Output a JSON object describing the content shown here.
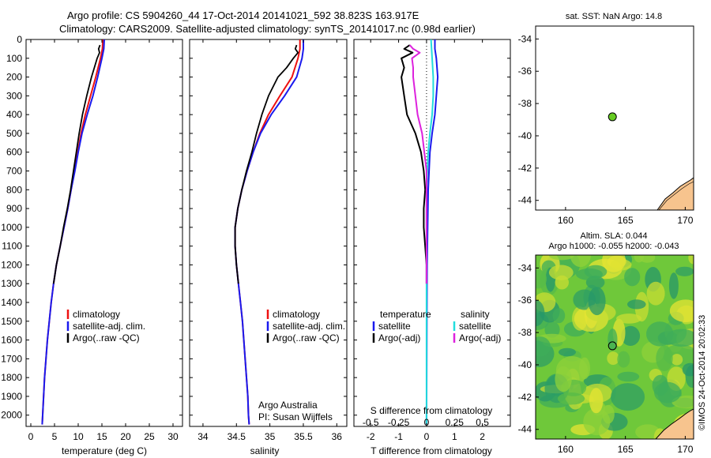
{
  "header": {
    "line1": "Argo profile: CS 5904260_44 17-Oct-2014 20141021_592 38.823S 163.917E",
    "line2": "Climatology: CARS2009. Satellite-adjusted climatology: synTS_20141017.nc (0.98d earlier)"
  },
  "colors": {
    "climatology": "#ee1111",
    "satellite": "#1a1aee",
    "argo": "#000000",
    "s_satellite": "#22dddd",
    "s_argo": "#dd22dd",
    "float_marker": "#66cc22",
    "land": "#f7c48e"
  },
  "depth_ticks": [
    "0",
    "100",
    "200",
    "300",
    "400",
    "500",
    "600",
    "700",
    "800",
    "900",
    "1000",
    "1100",
    "1200",
    "1300",
    "1400",
    "1500",
    "1600",
    "1700",
    "1800",
    "1900",
    "2000"
  ],
  "chart_data": [
    {
      "type": "line",
      "xlabel": "temperature (deg C)",
      "xlim": [
        -1,
        32
      ],
      "ylim": [
        2060,
        0
      ],
      "xticks": [
        "0",
        "5",
        "10",
        "15",
        "20",
        "25",
        "30"
      ],
      "legend": [
        "climatology",
        "satellite-adj. clim.",
        "Argo(..raw -QC)"
      ],
      "series": [
        {
          "name": "climatology",
          "depth": [
            0,
            50,
            100,
            200,
            300,
            400,
            500,
            600,
            700,
            800,
            900,
            1000,
            1100,
            1200,
            1300,
            1400,
            1500,
            1600,
            1700,
            1800,
            1900,
            2000,
            2050
          ],
          "values": [
            15.2,
            15.1,
            14.7,
            13.7,
            12.6,
            11.5,
            10.6,
            9.9,
            9.2,
            8.5,
            7.8,
            7.0,
            6.2,
            5.4,
            4.8,
            4.3,
            3.9,
            3.5,
            3.2,
            2.9,
            2.7,
            2.5,
            2.4
          ]
        },
        {
          "name": "satellite-adj. clim.",
          "depth": [
            0,
            50,
            100,
            200,
            300,
            400,
            500,
            600,
            700,
            800,
            900,
            1000,
            1100,
            1200,
            1300,
            1400,
            1500,
            1600,
            1700,
            1800,
            1900,
            2000,
            2050
          ],
          "values": [
            15.5,
            15.4,
            15.0,
            14.1,
            13.1,
            11.9,
            10.8,
            10.0,
            9.3,
            8.5,
            7.8,
            7.0,
            6.2,
            5.4,
            4.8,
            4.3,
            3.9,
            3.5,
            3.2,
            2.9,
            2.7,
            2.5,
            2.4
          ]
        },
        {
          "name": "Argo(..raw -QC)",
          "depth": [
            30,
            50,
            70,
            100,
            150,
            200,
            300,
            400,
            500,
            600,
            700,
            800,
            900,
            1000,
            1100,
            1200,
            1300
          ],
          "values": [
            14.6,
            14.3,
            14.5,
            14.0,
            13.4,
            12.8,
            11.8,
            10.9,
            10.2,
            9.6,
            9.0,
            8.4,
            7.7,
            6.9,
            6.2,
            5.4,
            4.8
          ]
        }
      ]
    },
    {
      "type": "line",
      "xlabel": "salinity",
      "xlim": [
        33.8,
        36.15
      ],
      "ylim": [
        2060,
        0
      ],
      "xticks": [
        "34",
        "34.5",
        "35",
        "35.5",
        "36"
      ],
      "legend": [
        "climatology",
        "satellite-adj. clim.",
        "Argo(..raw -QC)"
      ],
      "annotations": [
        "Argo Australia",
        "PI: Susan Wijffels"
      ],
      "series": [
        {
          "name": "climatology",
          "depth": [
            0,
            50,
            100,
            200,
            300,
            400,
            500,
            600,
            700,
            800,
            900,
            1000,
            1100,
            1200,
            1300,
            1400,
            1500,
            1600,
            1700,
            1800,
            1900,
            2000,
            2050
          ],
          "values": [
            35.45,
            35.45,
            35.42,
            35.33,
            35.15,
            34.98,
            34.85,
            34.75,
            34.66,
            34.58,
            34.52,
            34.48,
            34.48,
            34.5,
            34.53,
            34.56,
            34.59,
            34.61,
            34.63,
            34.65,
            34.67,
            34.68,
            34.69
          ]
        },
        {
          "name": "satellite-adj. clim.",
          "depth": [
            0,
            50,
            100,
            200,
            300,
            400,
            500,
            600,
            700,
            800,
            900,
            1000,
            1100,
            1200,
            1300,
            1400,
            1500,
            1600,
            1700,
            1800,
            1900,
            2000,
            2050
          ],
          "values": [
            35.5,
            35.5,
            35.48,
            35.4,
            35.22,
            35.02,
            34.86,
            34.75,
            34.66,
            34.58,
            34.52,
            34.48,
            34.48,
            34.5,
            34.53,
            34.56,
            34.59,
            34.61,
            34.63,
            34.65,
            34.67,
            34.68,
            34.69
          ]
        },
        {
          "name": "Argo(..raw -QC)",
          "depth": [
            30,
            50,
            70,
            100,
            150,
            200,
            300,
            400,
            500,
            600,
            700,
            800,
            900,
            1000,
            1100,
            1200,
            1300
          ],
          "values": [
            35.4,
            35.38,
            35.42,
            35.35,
            35.25,
            35.12,
            34.98,
            34.88,
            34.8,
            34.73,
            34.65,
            34.58,
            34.52,
            34.48,
            34.48,
            34.5,
            34.53
          ]
        }
      ]
    },
    {
      "type": "line",
      "xlabel": "T difference from climatology",
      "xlabel2": "S difference from climatology",
      "xlim": [
        -2.6,
        3.0
      ],
      "ylim": [
        2060,
        0
      ],
      "xticks": [
        "-2",
        "-1",
        "0",
        "1",
        "2"
      ],
      "xticks_s": [
        "-0.5",
        "-0.25",
        "0",
        "0.25",
        "0.5"
      ],
      "legend_titles": [
        "temperature",
        "salinity"
      ],
      "legend": [
        "satellite",
        "Argo(-adj)",
        "satellite",
        "Argo(-adj)"
      ],
      "series": [
        {
          "name": "temperature satellite",
          "depth": [
            0,
            50,
            100,
            200,
            300,
            400,
            500,
            600,
            800,
            1000,
            1200,
            1500,
            2050
          ],
          "values": [
            0.3,
            0.3,
            0.35,
            0.4,
            0.35,
            0.3,
            0.2,
            0.12,
            0.06,
            0.04,
            0.02,
            0.01,
            0.0
          ]
        },
        {
          "name": "temperature Argo(-adj)",
          "depth": [
            30,
            50,
            70,
            100,
            150,
            200,
            300,
            400,
            500,
            600,
            700,
            800,
            900,
            1000,
            1100,
            1200,
            1300
          ],
          "values": [
            -0.6,
            -0.8,
            -0.5,
            -0.9,
            -0.8,
            -0.9,
            -0.8,
            -0.7,
            -0.4,
            -0.2,
            -0.1,
            -0.05,
            -0.1,
            -0.1,
            -0.05,
            0.0,
            0.0
          ]
        },
        {
          "name": "salinity satellite",
          "depth": [
            0,
            100,
            200,
            300,
            400,
            500,
            600,
            800,
            1000,
            1200,
            1500,
            2050
          ],
          "values": [
            0.04,
            0.05,
            0.06,
            0.06,
            0.05,
            0.03,
            0.015,
            0.0,
            0.0,
            0.0,
            0.0,
            0.0
          ]
        },
        {
          "name": "salinity Argo(-adj)",
          "depth": [
            30,
            50,
            70,
            100,
            150,
            200,
            300,
            400,
            500,
            600,
            700,
            800,
            900,
            1000,
            1100,
            1200,
            1300
          ],
          "values": [
            -0.15,
            -0.12,
            -0.06,
            -0.13,
            -0.12,
            -0.12,
            -0.1,
            -0.08,
            -0.04,
            -0.02,
            0.0,
            0.0,
            0.0,
            0.0,
            0.0,
            0.0,
            0.0
          ]
        }
      ]
    }
  ],
  "map_sst": {
    "title": "sat. SST: NaN Argo: 14.8",
    "xlim": [
      157.5,
      170.7
    ],
    "ylim": [
      -44.6,
      -33.2
    ],
    "xticks": [
      "160",
      "165",
      "170"
    ],
    "yticks": [
      "-34",
      "-36",
      "-38",
      "-40",
      "-42",
      "-44"
    ],
    "float": {
      "lon": 163.917,
      "lat": -38.823
    }
  },
  "map_sla": {
    "title1": "Altim. SLA: 0.044",
    "title2": "Argo h1000: -0.055 h2000: -0.043",
    "xlim": [
      157.5,
      170.7
    ],
    "ylim": [
      -44.6,
      -33.2
    ],
    "xticks": [
      "160",
      "165",
      "170"
    ],
    "yticks": [
      "-34",
      "-36",
      "-38",
      "-40",
      "-42",
      "-44"
    ],
    "float": {
      "lon": 163.917,
      "lat": -38.823
    }
  },
  "footer": {
    "credit": "©IMOS 24-Oct-2014 20:02:33"
  }
}
